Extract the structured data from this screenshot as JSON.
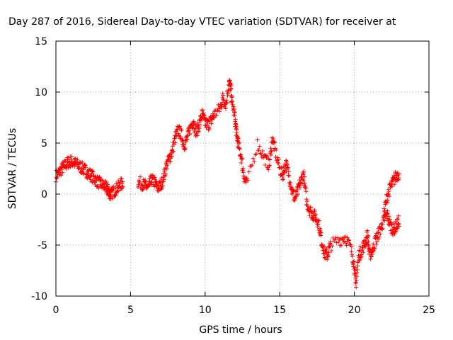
{
  "chart_data": {
    "type": "scatter",
    "title": "Day 287 of 2016, Sidereal Day-to-day VTEC variation (SDTVAR) for receiver at",
    "xlabel": "GPS time / hours",
    "ylabel": "SDTVAR / TECUs",
    "xlim": [
      0,
      25
    ],
    "ylim": [
      -10,
      15
    ],
    "xticks": [
      0,
      5,
      10,
      15,
      20,
      25
    ],
    "yticks": [
      -10,
      -5,
      0,
      5,
      10,
      15
    ],
    "grid": true,
    "marker": "+",
    "color": "#ff0000",
    "series": [
      {
        "trace": [
          [
            0.0,
            1.8
          ],
          [
            0.2,
            2.1
          ],
          [
            0.4,
            2.5
          ],
          [
            0.6,
            2.8
          ],
          [
            0.8,
            3.1
          ],
          [
            1.0,
            3.2
          ],
          [
            1.2,
            3.1
          ],
          [
            1.4,
            2.9
          ],
          [
            1.6,
            2.7
          ],
          [
            1.8,
            2.5
          ],
          [
            2.0,
            2.3
          ],
          [
            2.2,
            2.0
          ],
          [
            2.4,
            1.8
          ],
          [
            2.6,
            1.5
          ],
          [
            2.8,
            1.2
          ],
          [
            3.0,
            1.0
          ],
          [
            3.2,
            0.8
          ],
          [
            3.4,
            0.6
          ],
          [
            3.5,
            0.3
          ],
          [
            3.6,
            0.1
          ],
          [
            3.7,
            0.0
          ],
          [
            3.9,
            0.3
          ],
          [
            4.1,
            0.6
          ],
          [
            4.3,
            0.9
          ],
          [
            4.5,
            1.1
          ],
          [
            5.5,
            1.2
          ],
          [
            5.8,
            1.0
          ],
          [
            6.0,
            0.8
          ],
          [
            6.2,
            0.6
          ],
          [
            6.4,
            1.4
          ],
          [
            6.6,
            1.2
          ],
          [
            6.8,
            0.6
          ],
          [
            7.0,
            0.8
          ],
          [
            7.2,
            1.5
          ],
          [
            7.4,
            2.8
          ],
          [
            7.6,
            3.5
          ],
          [
            7.8,
            4.2
          ],
          [
            8.0,
            5.5
          ],
          [
            8.2,
            6.3
          ],
          [
            8.4,
            5.8
          ],
          [
            8.6,
            4.8
          ],
          [
            8.8,
            5.5
          ],
          [
            9.0,
            6.5
          ],
          [
            9.2,
            7.2
          ],
          [
            9.4,
            6.0
          ],
          [
            9.6,
            6.8
          ],
          [
            9.8,
            7.8
          ],
          [
            10.0,
            7.0
          ],
          [
            10.2,
            6.8
          ],
          [
            10.4,
            7.2
          ],
          [
            10.6,
            7.8
          ],
          [
            11.0,
            8.4
          ],
          [
            11.2,
            9.5
          ],
          [
            11.4,
            8.8
          ],
          [
            11.6,
            11.0
          ],
          [
            11.7,
            10.5
          ],
          [
            11.8,
            9.0
          ],
          [
            12.0,
            7.5
          ],
          [
            12.1,
            6.0
          ],
          [
            12.2,
            5.0
          ],
          [
            12.4,
            3.8
          ],
          [
            12.6,
            1.8
          ],
          [
            12.8,
            1.0
          ],
          [
            13.5,
            4.9
          ],
          [
            14.0,
            3.5
          ],
          [
            14.3,
            2.8
          ],
          [
            14.5,
            5.5
          ],
          [
            14.7,
            4.2
          ],
          [
            15.0,
            2.5
          ],
          [
            15.2,
            1.8
          ],
          [
            15.4,
            3.0
          ],
          [
            15.6,
            2.0
          ],
          [
            15.8,
            0.5
          ],
          [
            16.0,
            -0.5
          ],
          [
            16.2,
            0.2
          ],
          [
            16.4,
            1.2
          ],
          [
            16.6,
            2.0
          ],
          [
            16.8,
            -0.8
          ],
          [
            17.0,
            -1.5
          ],
          [
            17.2,
            -2.0
          ],
          [
            17.4,
            -2.2
          ],
          [
            17.6,
            -2.8
          ],
          [
            17.8,
            -4.5
          ],
          [
            18.0,
            -5.8
          ],
          [
            18.2,
            -6.0
          ],
          [
            18.4,
            -5.0
          ],
          [
            19.0,
            -4.5
          ],
          [
            19.4,
            -4.2
          ],
          [
            19.8,
            -5.5
          ],
          [
            20.0,
            -7.0
          ],
          [
            20.1,
            -8.9
          ],
          [
            20.3,
            -6.0
          ],
          [
            20.5,
            -5.5
          ],
          [
            20.7,
            -4.8
          ],
          [
            20.9,
            -4.0
          ],
          [
            21.0,
            -6.0
          ],
          [
            21.2,
            -5.6
          ],
          [
            21.4,
            -4.6
          ],
          [
            21.6,
            -4.0
          ],
          [
            21.8,
            -3.2
          ],
          [
            22.0,
            -2.5
          ],
          [
            22.2,
            -2.0
          ],
          [
            22.4,
            -3.0
          ],
          [
            22.6,
            -3.5
          ],
          [
            22.8,
            -3.2
          ],
          [
            23.0,
            -2.6
          ],
          [
            22.0,
            -1.8
          ],
          [
            22.2,
            -0.2
          ],
          [
            22.4,
            0.6
          ],
          [
            22.6,
            1.2
          ],
          [
            22.8,
            1.8
          ],
          [
            23.0,
            2.0
          ]
        ]
      }
    ]
  }
}
